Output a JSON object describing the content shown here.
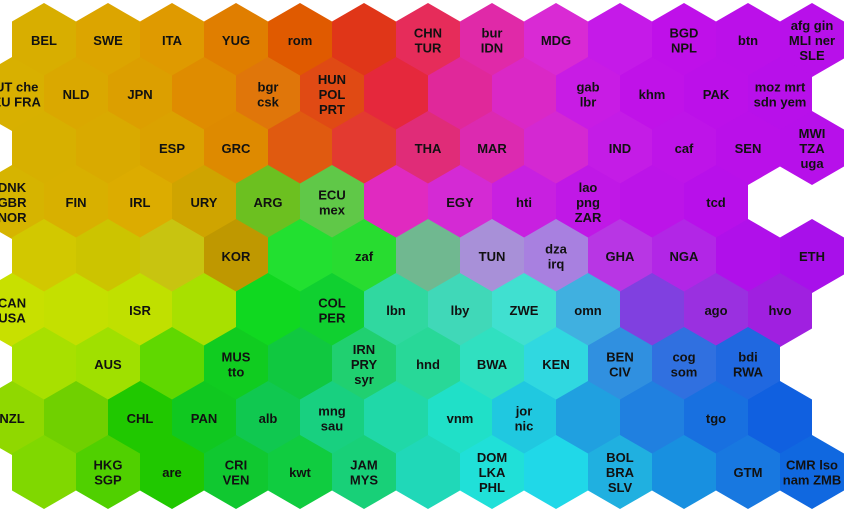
{
  "map": {
    "rows": 9,
    "cols": 16,
    "cells": [
      {
        "r": 0,
        "c": 0,
        "color": "#d8ae00",
        "labels": [
          "BEL"
        ]
      },
      {
        "r": 0,
        "c": 1,
        "color": "#dca500",
        "labels": [
          "SWE"
        ]
      },
      {
        "r": 0,
        "c": 2,
        "color": "#df9a00",
        "labels": [
          "ITA"
        ]
      },
      {
        "r": 0,
        "c": 3,
        "color": "#e07e00",
        "labels": [
          "YUG"
        ]
      },
      {
        "r": 0,
        "c": 4,
        "color": "#e05a00",
        "labels": [
          "rom"
        ]
      },
      {
        "r": 0,
        "c": 5,
        "color": "#e03618",
        "labels": []
      },
      {
        "r": 0,
        "c": 6,
        "color": "#e62c5a",
        "labels": [
          "CHN",
          "TUR"
        ]
      },
      {
        "r": 0,
        "c": 7,
        "color": "#e029a8",
        "labels": [
          "bur",
          "IDN"
        ]
      },
      {
        "r": 0,
        "c": 8,
        "color": "#d92ad4",
        "labels": [
          "MDG"
        ]
      },
      {
        "r": 0,
        "c": 9,
        "color": "#c51ae8",
        "labels": []
      },
      {
        "r": 0,
        "c": 10,
        "color": "#bf10e9",
        "labels": [
          "BGD",
          "NPL"
        ]
      },
      {
        "r": 0,
        "c": 11,
        "color": "#bb10e9",
        "labels": [
          "btn"
        ]
      },
      {
        "r": 0,
        "c": 12,
        "color": "#b810ea",
        "labels": [
          "afg gin",
          "MLI ner",
          "SLE"
        ]
      },
      {
        "r": 1,
        "c": 0,
        "color": "#d8b000",
        "labels": [
          "AUT che",
          "DEU FRA"
        ]
      },
      {
        "r": 1,
        "c": 1,
        "color": "#daa800",
        "labels": [
          "NLD"
        ]
      },
      {
        "r": 1,
        "c": 2,
        "color": "#dc9f00",
        "labels": [
          "JPN"
        ]
      },
      {
        "r": 1,
        "c": 3,
        "color": "#df8c00",
        "labels": []
      },
      {
        "r": 1,
        "c": 4,
        "color": "#e0760a",
        "labels": [
          "bgr",
          "csk"
        ]
      },
      {
        "r": 1,
        "c": 5,
        "color": "#e04a14",
        "labels": [
          "HUN",
          "POL",
          "PRT"
        ]
      },
      {
        "r": 1,
        "c": 6,
        "color": "#e5283c",
        "labels": []
      },
      {
        "r": 1,
        "c": 7,
        "color": "#e0289a",
        "labels": []
      },
      {
        "r": 1,
        "c": 8,
        "color": "#da28c6",
        "labels": []
      },
      {
        "r": 1,
        "c": 9,
        "color": "#c81ce4",
        "labels": [
          "gab",
          "lbr"
        ]
      },
      {
        "r": 1,
        "c": 10,
        "color": "#c012e8",
        "labels": [
          "khm"
        ]
      },
      {
        "r": 1,
        "c": 11,
        "color": "#bc10e9",
        "labels": [
          "PAK"
        ]
      },
      {
        "r": 1,
        "c": 12,
        "color": "#b810ea",
        "labels": [
          "moz mrt",
          "sdn yem"
        ]
      },
      {
        "r": 2,
        "c": 0,
        "color": "#d7b000",
        "labels": []
      },
      {
        "r": 2,
        "c": 1,
        "color": "#d9aa00",
        "labels": []
      },
      {
        "r": 2,
        "c": 2,
        "color": "#dba200",
        "labels": [
          "ESP"
        ]
      },
      {
        "r": 2,
        "c": 3,
        "color": "#de8a00",
        "labels": [
          "GRC"
        ]
      },
      {
        "r": 2,
        "c": 4,
        "color": "#e05a10",
        "labels": []
      },
      {
        "r": 2,
        "c": 5,
        "color": "#e33a30",
        "labels": []
      },
      {
        "r": 2,
        "c": 6,
        "color": "#e02c78",
        "labels": [
          "THA"
        ]
      },
      {
        "r": 2,
        "c": 7,
        "color": "#dc2ab0",
        "labels": [
          "MAR"
        ]
      },
      {
        "r": 2,
        "c": 8,
        "color": "#d428d2",
        "labels": []
      },
      {
        "r": 2,
        "c": 9,
        "color": "#c41ce6",
        "labels": [
          "IND"
        ]
      },
      {
        "r": 2,
        "c": 10,
        "color": "#be14e8",
        "labels": [
          "caf"
        ]
      },
      {
        "r": 2,
        "c": 11,
        "color": "#ba10e9",
        "labels": [
          "SEN"
        ]
      },
      {
        "r": 2,
        "c": 12,
        "color": "#b710ea",
        "labels": [
          "MWI",
          "TZA",
          "uga"
        ]
      },
      {
        "r": 3,
        "c": 0,
        "color": "#d6b400",
        "labels": [
          "DNK",
          "GBR",
          "NOR"
        ]
      },
      {
        "r": 3,
        "c": 1,
        "color": "#d8b000",
        "labels": [
          "FIN"
        ]
      },
      {
        "r": 3,
        "c": 2,
        "color": "#dcac00",
        "labels": [
          "IRL"
        ]
      },
      {
        "r": 3,
        "c": 3,
        "color": "#cfa400",
        "labels": [
          "URY"
        ]
      },
      {
        "r": 3,
        "c": 4,
        "color": "#6cc020",
        "labels": [
          "ARG"
        ]
      },
      {
        "r": 3,
        "c": 5,
        "color": "#60c848",
        "labels": [
          "ECU",
          "mex"
        ]
      },
      {
        "r": 3,
        "c": 6,
        "color": "#e02ac0",
        "labels": []
      },
      {
        "r": 3,
        "c": 7,
        "color": "#d42ad4",
        "labels": [
          "EGY"
        ]
      },
      {
        "r": 3,
        "c": 8,
        "color": "#c820e0",
        "labels": [
          "hti"
        ]
      },
      {
        "r": 3,
        "c": 9,
        "color": "#c018e6",
        "labels": [
          "lao",
          "png",
          "ZAR"
        ]
      },
      {
        "r": 3,
        "c": 10,
        "color": "#bc14e8",
        "labels": []
      },
      {
        "r": 3,
        "c": 11,
        "color": "#b810ea",
        "labels": [
          "tcd"
        ]
      },
      {
        "r": 4,
        "c": 0,
        "color": "#d2c800",
        "labels": []
      },
      {
        "r": 4,
        "c": 1,
        "color": "#ccc400",
        "labels": []
      },
      {
        "r": 4,
        "c": 2,
        "color": "#c8c410",
        "labels": []
      },
      {
        "r": 4,
        "c": 3,
        "color": "#bf9800",
        "labels": [
          "KOR"
        ]
      },
      {
        "r": 4,
        "c": 4,
        "color": "#22e030",
        "labels": []
      },
      {
        "r": 4,
        "c": 5,
        "color": "#28dc30",
        "labels": [
          "zaf"
        ]
      },
      {
        "r": 4,
        "c": 6,
        "color": "#70b890",
        "labels": []
      },
      {
        "r": 4,
        "c": 7,
        "color": "#a890d8",
        "labels": [
          "TUN"
        ]
      },
      {
        "r": 4,
        "c": 8,
        "color": "#a880e0",
        "labels": [
          "dza",
          "irq"
        ]
      },
      {
        "r": 4,
        "c": 9,
        "color": "#b836e4",
        "labels": [
          "GHA"
        ]
      },
      {
        "r": 4,
        "c": 10,
        "color": "#b226e6",
        "labels": [
          "NGA"
        ]
      },
      {
        "r": 4,
        "c": 11,
        "color": "#b010ea",
        "labels": []
      },
      {
        "r": 4,
        "c": 12,
        "color": "#a810ea",
        "labels": [
          "ETH"
        ]
      },
      {
        "r": 5,
        "c": 0,
        "color": "#c8e000",
        "labels": [
          "CAN",
          "USA"
        ]
      },
      {
        "r": 5,
        "c": 1,
        "color": "#c4e000",
        "labels": []
      },
      {
        "r": 5,
        "c": 2,
        "color": "#c0e000",
        "labels": [
          "ISR"
        ]
      },
      {
        "r": 5,
        "c": 3,
        "color": "#a8e000",
        "labels": []
      },
      {
        "r": 5,
        "c": 4,
        "color": "#10d820",
        "labels": []
      },
      {
        "r": 5,
        "c": 5,
        "color": "#10d030",
        "labels": [
          "COL",
          "PER"
        ]
      },
      {
        "r": 5,
        "c": 6,
        "color": "#30d8a0",
        "labels": [
          "lbn"
        ]
      },
      {
        "r": 5,
        "c": 7,
        "color": "#40d8b8",
        "labels": [
          "lby"
        ]
      },
      {
        "r": 5,
        "c": 8,
        "color": "#40e0d0",
        "labels": [
          "ZWE"
        ]
      },
      {
        "r": 5,
        "c": 9,
        "color": "#40b0e0",
        "labels": [
          "omn"
        ]
      },
      {
        "r": 5,
        "c": 10,
        "color": "#8040e0",
        "labels": []
      },
      {
        "r": 5,
        "c": 11,
        "color": "#9a30e0",
        "labels": [
          "ago"
        ]
      },
      {
        "r": 5,
        "c": 12,
        "color": "#a020e0",
        "labels": [
          "hvo"
        ]
      },
      {
        "r": 6,
        "c": 0,
        "color": "#a8e000",
        "labels": []
      },
      {
        "r": 6,
        "c": 1,
        "color": "#a0e000",
        "labels": [
          "AUS"
        ]
      },
      {
        "r": 6,
        "c": 2,
        "color": "#60d800",
        "labels": []
      },
      {
        "r": 6,
        "c": 3,
        "color": "#10cc20",
        "labels": [
          "MUS",
          "tto"
        ]
      },
      {
        "r": 6,
        "c": 4,
        "color": "#10c840",
        "labels": []
      },
      {
        "r": 6,
        "c": 5,
        "color": "#20d070",
        "labels": [
          "IRN",
          "PRY",
          "syr"
        ]
      },
      {
        "r": 6,
        "c": 6,
        "color": "#28d898",
        "labels": [
          "hnd"
        ]
      },
      {
        "r": 6,
        "c": 7,
        "color": "#30e0c0",
        "labels": [
          "BWA"
        ]
      },
      {
        "r": 6,
        "c": 8,
        "color": "#30d8e0",
        "labels": [
          "KEN"
        ]
      },
      {
        "r": 6,
        "c": 9,
        "color": "#3090e0",
        "labels": [
          "BEN",
          "CIV"
        ]
      },
      {
        "r": 6,
        "c": 10,
        "color": "#3070e0",
        "labels": [
          "cog",
          "som"
        ]
      },
      {
        "r": 6,
        "c": 11,
        "color": "#2068e0",
        "labels": [
          "bdi",
          "RWA"
        ]
      },
      {
        "r": 7,
        "c": 0,
        "color": "#90d800",
        "labels": [
          "NZL"
        ]
      },
      {
        "r": 7,
        "c": 1,
        "color": "#70d000",
        "labels": []
      },
      {
        "r": 7,
        "c": 2,
        "color": "#20c800",
        "labels": [
          "CHL"
        ]
      },
      {
        "r": 7,
        "c": 3,
        "color": "#10c820",
        "labels": [
          "PAN"
        ]
      },
      {
        "r": 7,
        "c": 4,
        "color": "#10c850",
        "labels": [
          "alb"
        ]
      },
      {
        "r": 7,
        "c": 5,
        "color": "#18d080",
        "labels": [
          "mng",
          "sau"
        ]
      },
      {
        "r": 7,
        "c": 6,
        "color": "#20d8a8",
        "labels": []
      },
      {
        "r": 7,
        "c": 7,
        "color": "#20e0c8",
        "labels": [
          "vnm"
        ]
      },
      {
        "r": 7,
        "c": 8,
        "color": "#20c8e0",
        "labels": [
          "jor",
          "nic"
        ]
      },
      {
        "r": 7,
        "c": 9,
        "color": "#20a0e0",
        "labels": []
      },
      {
        "r": 7,
        "c": 10,
        "color": "#2080e0",
        "labels": []
      },
      {
        "r": 7,
        "c": 11,
        "color": "#1870e0",
        "labels": [
          "tgo"
        ]
      },
      {
        "r": 7,
        "c": 12,
        "color": "#1060e0",
        "labels": []
      },
      {
        "r": 8,
        "c": 0,
        "color": "#80d800",
        "labels": []
      },
      {
        "r": 8,
        "c": 1,
        "color": "#50d000",
        "labels": [
          "HKG",
          "SGP"
        ]
      },
      {
        "r": 8,
        "c": 2,
        "color": "#20c800",
        "labels": [
          "are"
        ]
      },
      {
        "r": 8,
        "c": 3,
        "color": "#10c830",
        "labels": [
          "CRI",
          "VEN"
        ]
      },
      {
        "r": 8,
        "c": 4,
        "color": "#10cc40",
        "labels": [
          "kwt"
        ]
      },
      {
        "r": 8,
        "c": 5,
        "color": "#18d078",
        "labels": [
          "JAM",
          "MYS"
        ]
      },
      {
        "r": 8,
        "c": 6,
        "color": "#20d8b8",
        "labels": []
      },
      {
        "r": 8,
        "c": 7,
        "color": "#20e0d8",
        "labels": [
          "DOM",
          "LKA",
          "PHL"
        ]
      },
      {
        "r": 8,
        "c": 8,
        "color": "#20d8e8",
        "labels": []
      },
      {
        "r": 8,
        "c": 9,
        "color": "#20b0e0",
        "labels": [
          "BOL",
          "BRA",
          "SLV"
        ]
      },
      {
        "r": 8,
        "c": 10,
        "color": "#1890e0",
        "labels": []
      },
      {
        "r": 8,
        "c": 11,
        "color": "#1878e0",
        "labels": [
          "GTM"
        ]
      },
      {
        "r": 8,
        "c": 12,
        "color": "#1068e0",
        "labels": [
          "CMR lso",
          "nam ZMB"
        ]
      }
    ]
  }
}
